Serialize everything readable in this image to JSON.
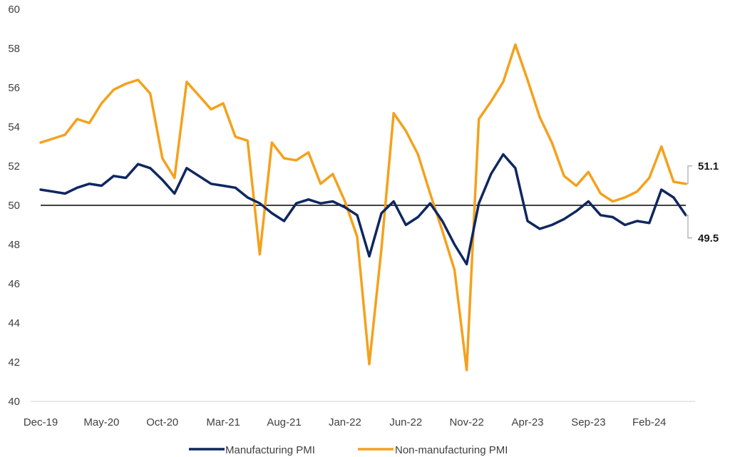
{
  "chart_data": {
    "type": "line",
    "title": "",
    "xlabel": "",
    "ylabel": "",
    "ylim": [
      40,
      60
    ],
    "yticks": [
      40,
      42,
      44,
      46,
      48,
      50,
      52,
      54,
      56,
      58,
      60
    ],
    "x_tick_labels": [
      {
        "index": 0,
        "label": "Dec-19"
      },
      {
        "index": 5,
        "label": "May-20"
      },
      {
        "index": 10,
        "label": "Oct-20"
      },
      {
        "index": 15,
        "label": "Mar-21"
      },
      {
        "index": 20,
        "label": "Aug-21"
      },
      {
        "index": 25,
        "label": "Jan-22"
      },
      {
        "index": 30,
        "label": "Jun-22"
      },
      {
        "index": 35,
        "label": "Nov-22"
      },
      {
        "index": 40,
        "label": "Apr-23"
      },
      {
        "index": 45,
        "label": "Sep-23"
      },
      {
        "index": 50,
        "label": "Feb-24"
      }
    ],
    "reference_line": 50,
    "grid": false,
    "legend_position": "bottom",
    "series": [
      {
        "name": "Manufacturing PMI",
        "color": "#0f2760",
        "values": [
          50.8,
          50.7,
          50.6,
          50.9,
          51.1,
          51.0,
          51.5,
          51.4,
          52.1,
          51.9,
          51.3,
          50.6,
          51.9,
          51.5,
          51.1,
          51.0,
          50.9,
          50.4,
          50.1,
          49.6,
          49.2,
          50.1,
          50.3,
          50.1,
          50.2,
          49.9,
          49.5,
          47.4,
          49.6,
          50.2,
          49.0,
          49.4,
          50.1,
          49.2,
          48.0,
          47.0,
          50.1,
          51.6,
          52.6,
          51.9,
          49.2,
          48.8,
          49.0,
          49.3,
          49.7,
          50.2,
          49.5,
          49.4,
          49.0,
          49.2,
          49.1,
          50.8,
          50.4,
          49.5
        ]
      },
      {
        "name": "Non-manufacturing PMI",
        "color": "#f4a11c",
        "values": [
          53.2,
          53.4,
          53.6,
          54.4,
          54.2,
          55.2,
          55.9,
          56.2,
          56.4,
          55.7,
          52.4,
          51.4,
          56.3,
          55.6,
          54.9,
          55.2,
          53.5,
          53.3,
          47.5,
          53.2,
          52.4,
          52.3,
          52.7,
          51.1,
          51.6,
          50.2,
          48.4,
          41.9,
          47.8,
          54.7,
          53.8,
          52.6,
          50.6,
          48.7,
          46.7,
          41.6,
          54.4,
          55.3,
          56.3,
          58.2,
          56.4,
          54.5,
          53.2,
          51.5,
          51.0,
          51.7,
          50.6,
          50.2,
          50.4,
          50.7,
          51.4,
          53.0,
          51.2,
          51.1
        ]
      }
    ],
    "annotations": [
      {
        "series": "Non-manufacturing PMI",
        "value": 51.1,
        "text": "51.1"
      },
      {
        "series": "Manufacturing PMI",
        "value": 49.5,
        "text": "49.5"
      }
    ]
  }
}
